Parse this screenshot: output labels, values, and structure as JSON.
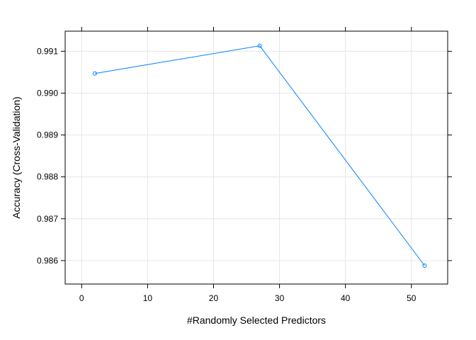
{
  "chart_data": {
    "type": "line",
    "title": "",
    "xlabel": "#Randomly Selected Predictors",
    "ylabel": "Accuracy (Cross-Validation)",
    "xlim": [
      -2.5,
      55.5
    ],
    "ylim": [
      0.98544,
      0.99148
    ],
    "x_ticks": [
      0,
      10,
      20,
      30,
      40,
      50
    ],
    "y_ticks": [
      0.986,
      0.987,
      0.988,
      0.989,
      0.99,
      0.991
    ],
    "x_tick_labels": [
      "0",
      "10",
      "20",
      "30",
      "40",
      "50"
    ],
    "y_tick_labels": [
      "0.986",
      "0.987",
      "0.988",
      "0.989",
      "0.990",
      "0.991"
    ],
    "grid": true,
    "series": [
      {
        "color": "#0080ff",
        "marker": "circle-open",
        "x": [
          2,
          27,
          52
        ],
        "values": [
          0.99047,
          0.99113,
          0.98588
        ]
      }
    ]
  }
}
